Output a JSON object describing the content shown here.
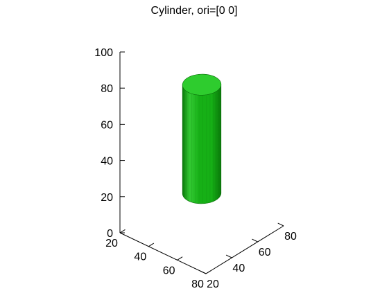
{
  "chart_data": {
    "type": "surface",
    "title": "Cylinder, ori=[0 0]",
    "xlabel": "",
    "ylabel": "",
    "zlabel": "",
    "xlim": [
      20,
      80
    ],
    "ylim": [
      20,
      80
    ],
    "zlim": [
      0,
      100
    ],
    "x_ticks": [
      "20",
      "40",
      "60",
      "80"
    ],
    "y_ticks": [
      "20",
      "40",
      "60",
      "80"
    ],
    "z_ticks": [
      "0",
      "20",
      "40",
      "60",
      "80",
      "100"
    ],
    "grid": false,
    "surface": {
      "shape": "cylinder",
      "center_x": 50,
      "center_y": 50,
      "radius": 10,
      "z_min": 20,
      "z_max": 80
    },
    "colors": {
      "light": "#33c933",
      "main": "#16b016",
      "dark": "#0a7a0a",
      "top": "#2ecc2e",
      "edge": "#0b6b0b"
    }
  }
}
